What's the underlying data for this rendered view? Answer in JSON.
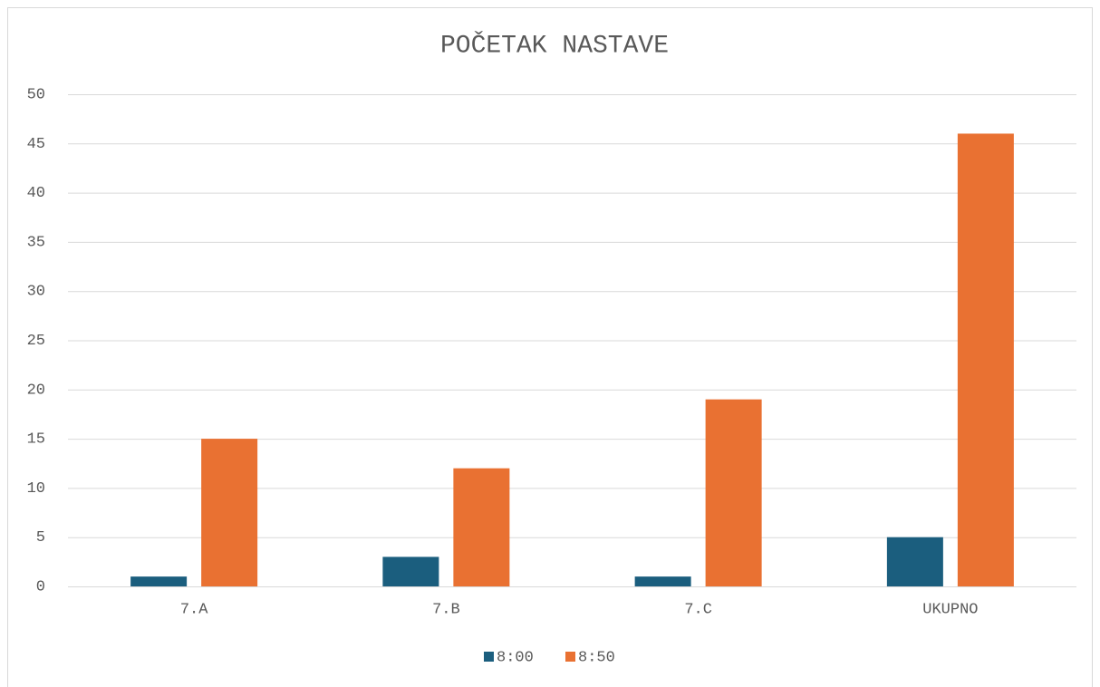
{
  "chart_data": {
    "type": "bar",
    "title": "POČETAK NASTAVE",
    "categories": [
      "7.A",
      "7.B",
      "7.C",
      "UKUPNO"
    ],
    "series": [
      {
        "name": "8:00",
        "color": "#1b5e7e",
        "values": [
          1,
          3,
          1,
          5
        ]
      },
      {
        "name": "8:50",
        "color": "#e97132",
        "values": [
          15,
          12,
          19,
          46
        ]
      }
    ],
    "ylim": [
      0,
      50
    ],
    "yticks": [
      0,
      5,
      10,
      15,
      20,
      25,
      30,
      35,
      40,
      45,
      50
    ],
    "grid": true,
    "legend": "bottom"
  }
}
